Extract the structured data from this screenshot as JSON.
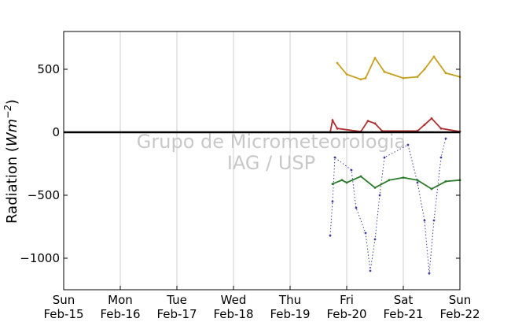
{
  "chart_data": {
    "type": "scatter",
    "ylabel": "Radiation",
    "ylabel_unit": "Wm",
    "ylabel_exp": "−2",
    "ylim": [
      -1250,
      800
    ],
    "yticks": [
      500,
      0,
      -500,
      -1000
    ],
    "ytick_labels": [
      "500",
      "0",
      "−500",
      "−1000"
    ],
    "xlim": [
      "2015-02-15",
      "2015-02-22"
    ],
    "xtick_labels": [
      {
        "day": "Sun",
        "date": "Feb-15"
      },
      {
        "day": "Mon",
        "date": "Feb-16"
      },
      {
        "day": "Tue",
        "date": "Feb-17"
      },
      {
        "day": "Wed",
        "date": "Feb-18"
      },
      {
        "day": "Thu",
        "date": "Feb-19"
      },
      {
        "day": "Fri",
        "date": "Feb-20"
      },
      {
        "day": "Sat",
        "date": "Feb-21"
      },
      {
        "day": "Sun",
        "date": "Feb-22"
      }
    ],
    "grid": "vertical",
    "watermark": [
      "Grupo de Micrometeorologia",
      "IAG / USP"
    ],
    "series": [
      {
        "color": "#c8a020",
        "points": [
          [
            "2015-02-19 20:00",
            550
          ],
          [
            "2015-02-20 00:00",
            460
          ],
          [
            "2015-02-20 06:00",
            420
          ],
          [
            "2015-02-20 08:00",
            430
          ],
          [
            "2015-02-20 12:00",
            590
          ],
          [
            "2015-02-20 16:00",
            480
          ],
          [
            "2015-02-21 00:00",
            430
          ],
          [
            "2015-02-21 06:00",
            440
          ],
          [
            "2015-02-21 09:00",
            500
          ],
          [
            "2015-02-21 13:00",
            600
          ],
          [
            "2015-02-21 18:00",
            470
          ],
          [
            "2015-02-22 00:00",
            440
          ]
        ]
      },
      {
        "color": "#b03030",
        "points": [
          [
            "2015-02-19 17:00",
            0
          ],
          [
            "2015-02-19 18:00",
            95
          ],
          [
            "2015-02-19 20:00",
            30
          ],
          [
            "2015-02-20 06:00",
            5
          ],
          [
            "2015-02-20 09:00",
            90
          ],
          [
            "2015-02-20 12:00",
            70
          ],
          [
            "2015-02-20 15:00",
            10
          ],
          [
            "2015-02-21 06:00",
            10
          ],
          [
            "2015-02-21 09:00",
            60
          ],
          [
            "2015-02-21 12:00",
            110
          ],
          [
            "2015-02-21 16:00",
            30
          ],
          [
            "2015-02-22 00:00",
            5
          ]
        ]
      },
      {
        "color": "#2a7a2a",
        "points": [
          [
            "2015-02-19 18:00",
            -410
          ],
          [
            "2015-02-19 22:00",
            -380
          ],
          [
            "2015-02-20 00:00",
            -400
          ],
          [
            "2015-02-20 06:00",
            -350
          ],
          [
            "2015-02-20 12:00",
            -440
          ],
          [
            "2015-02-20 18:00",
            -380
          ],
          [
            "2015-02-21 00:00",
            -360
          ],
          [
            "2015-02-21 06:00",
            -380
          ],
          [
            "2015-02-21 12:00",
            -450
          ],
          [
            "2015-02-21 18:00",
            -390
          ],
          [
            "2015-02-22 00:00",
            -380
          ]
        ]
      },
      {
        "color": "#4040a0",
        "points": [
          [
            "2015-02-19 17:00",
            -820
          ],
          [
            "2015-02-19 18:00",
            -550
          ],
          [
            "2015-02-19 19:00",
            -200
          ],
          [
            "2015-02-20 02:00",
            -300
          ],
          [
            "2015-02-20 04:00",
            -600
          ],
          [
            "2015-02-20 08:00",
            -800
          ],
          [
            "2015-02-20 10:00",
            -1100
          ],
          [
            "2015-02-20 12:00",
            -850
          ],
          [
            "2015-02-20 14:00",
            -500
          ],
          [
            "2015-02-20 16:00",
            -200
          ],
          [
            "2015-02-21 02:00",
            -100
          ],
          [
            "2015-02-21 06:00",
            -400
          ],
          [
            "2015-02-21 09:00",
            -700
          ],
          [
            "2015-02-21 11:00",
            -1120
          ],
          [
            "2015-02-21 13:00",
            -700
          ],
          [
            "2015-02-21 16:00",
            -200
          ],
          [
            "2015-02-21 18:00",
            -50
          ]
        ]
      },
      {
        "color": "#000000",
        "points": [
          [
            "2015-02-15 00:00",
            0
          ],
          [
            "2015-02-22 00:00",
            0
          ]
        ]
      }
    ]
  }
}
